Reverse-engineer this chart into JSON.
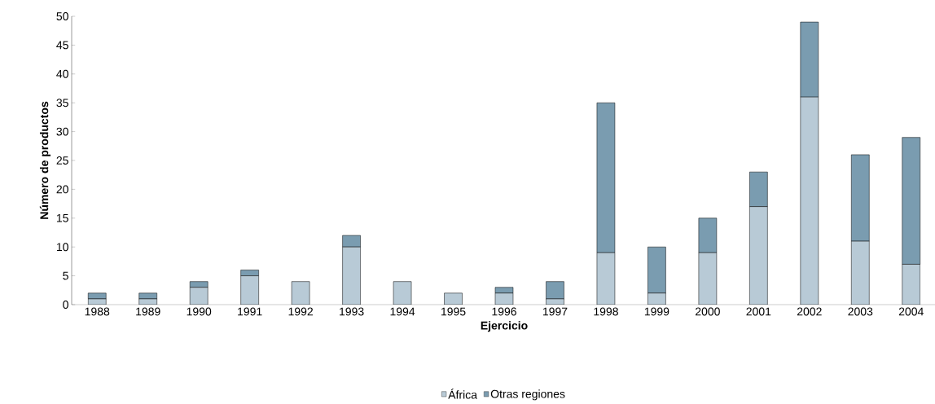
{
  "chart_data": {
    "type": "bar",
    "stacked": true,
    "xlabel": "Ejercicio",
    "ylabel": "Número de productos",
    "categories": [
      "1988",
      "1989",
      "1990",
      "1991",
      "1992",
      "1993",
      "1994",
      "1995",
      "1996",
      "1997",
      "1998",
      "1999",
      "2000",
      "2001",
      "2002",
      "2003",
      "2004"
    ],
    "series": [
      {
        "name": "África",
        "color": "#b8cad6",
        "values": [
          1,
          1,
          3,
          5,
          4,
          10,
          4,
          2,
          2,
          1,
          9,
          2,
          9,
          17,
          36,
          11,
          7
        ]
      },
      {
        "name": "Otras regiones",
        "color": "#7a9cb0",
        "values": [
          1,
          1,
          1,
          1,
          0,
          2,
          0,
          0,
          1,
          3,
          26,
          8,
          6,
          6,
          13,
          15,
          22
        ]
      }
    ],
    "ylim": [
      0,
      50
    ],
    "yticks": [
      0,
      5,
      10,
      15,
      20,
      25,
      30,
      35,
      40,
      45,
      50
    ],
    "grid": false,
    "legend": "bottom"
  }
}
